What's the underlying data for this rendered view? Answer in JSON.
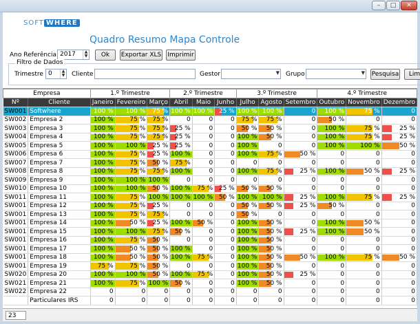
{
  "header": {
    "logo_left": "SOFT",
    "logo_right": "WHERE",
    "title": "Quadro Resumo Mapa Controle"
  },
  "toolbar": {
    "year_label": "Ano Referência",
    "year_value": "2017",
    "ok_label": "Ok",
    "export_label": "Exportar XLS",
    "print_label": "Imprimir"
  },
  "filters": {
    "legend": "Filtro de Dados",
    "quarter_label": "Trimestre",
    "quarter_value": "0",
    "client_label": "Cliente",
    "client_value": "",
    "manager_label": "Gestor",
    "manager_value": "",
    "group_label": "Grupo",
    "group_value": "",
    "search_label": "Pesquisa",
    "clear_label": "Lim"
  },
  "colors": {
    "green": "#9fdc00",
    "yellow": "#f2c400",
    "orange": "#f08a24",
    "red": "#f0504a",
    "selected": "#1aa5cf"
  },
  "table": {
    "group_headers": [
      "Empresa",
      "1.º Trimestre",
      "2.º Trimestre",
      "3.º Trimestre",
      "4.º Trimestre"
    ],
    "columns": [
      "Nº",
      "Cliente",
      "Janeiro",
      "Fevereiro",
      "Março",
      "Abril",
      "Maio",
      "Junho",
      "Julho",
      "Agosto",
      "Setembro",
      "Outubro",
      "Novembro",
      "Dezembro"
    ],
    "rows": [
      {
        "code": "SW001",
        "name": "Softwhere",
        "selected": true,
        "values": [
          "100 %",
          "100 %",
          "75 %",
          "100 %",
          "100 %",
          "25 %",
          "100 %",
          "100 %",
          "0",
          "100 %",
          "75 %",
          "0"
        ]
      },
      {
        "code": "SW002",
        "name": "Empresa 2",
        "values": [
          "100 %",
          "75 %",
          "75 %",
          "0",
          "0",
          "0",
          "75 %",
          "75 %",
          "0",
          "50 %",
          "0",
          "0"
        ]
      },
      {
        "code": "SW003",
        "name": "Empresa 3",
        "values": [
          "100 %",
          "75 %",
          "75 %",
          "25 %",
          "0",
          "0",
          "50 %",
          "50 %",
          "0",
          "100 %",
          "75 %",
          "25 %"
        ]
      },
      {
        "code": "SW004",
        "name": "Empresa 4",
        "values": [
          "100 %",
          "75 %",
          "75 %",
          "25 %",
          "0",
          "0",
          "100 %",
          "50 %",
          "0",
          "100 %",
          "75 %",
          "25 %"
        ]
      },
      {
        "code": "SW005",
        "name": "Empresa 5",
        "values": [
          "100 %",
          "100 %",
          "25 %",
          "25 %",
          "0",
          "0",
          "100 %",
          "0",
          "0",
          "100 %",
          "100 %",
          "50 %"
        ]
      },
      {
        "code": "SW006",
        "name": "Empresa 6",
        "values": [
          "100 %",
          "75 %",
          "25 %",
          "100 %",
          "0",
          "0",
          "100 %",
          "75 %",
          "50 %",
          "0",
          "0",
          "0"
        ]
      },
      {
        "code": "SW007",
        "name": "Empresa 7",
        "values": [
          "100 %",
          "75 %",
          "50 %",
          "75 %",
          "0",
          "0",
          "0",
          "0",
          "0",
          "0",
          "0",
          "0"
        ]
      },
      {
        "code": "SW008",
        "name": "Empresa 8",
        "values": [
          "100 %",
          "75 %",
          "75 %",
          "100 %",
          "0",
          "0",
          "100 %",
          "75 %",
          "25 %",
          "100 %",
          "50 %",
          "25 %"
        ]
      },
      {
        "code": "SW009",
        "name": "Empresa 9",
        "values": [
          "100 %",
          "100 %",
          "100 %",
          "0",
          "0",
          "0",
          "0",
          "0",
          "0",
          "0",
          "0",
          "0"
        ]
      },
      {
        "code": "SW010",
        "name": "Empresa 10",
        "values": [
          "100 %",
          "100 %",
          "50 %",
          "100 %",
          "75 %",
          "25 %",
          "50 %",
          "50 %",
          "0",
          "0",
          "0",
          "0"
        ]
      },
      {
        "code": "SW011",
        "name": "Empresa 11",
        "values": [
          "100 %",
          "75 %",
          "100 %",
          "100 %",
          "100 %",
          "50 %",
          "100 %",
          "100 %",
          "25 %",
          "100 %",
          "75 %",
          "25 %"
        ]
      },
      {
        "code": "SW001",
        "name": "Empresa 12",
        "values": [
          "100 %",
          "75 %",
          "25 %",
          "0",
          "0",
          "0",
          "50 %",
          "50 %",
          "25 %",
          "50 %",
          "0",
          "0"
        ]
      },
      {
        "code": "SW001",
        "name": "Empresa 13",
        "values": [
          "100 %",
          "75 %",
          "75 %",
          "0",
          "0",
          "0",
          "50 %",
          "0",
          "0",
          "0",
          "0",
          "0"
        ]
      },
      {
        "code": "SW001",
        "name": "Empresa 14",
        "values": [
          "100 %",
          "50 %",
          "25 %",
          "100 %",
          "50 %",
          "0",
          "100 %",
          "50 %",
          "0",
          "100 %",
          "50 %",
          "0"
        ]
      },
      {
        "code": "SW001",
        "name": "Empresa 15",
        "values": [
          "100 %",
          "100 %",
          "75 %",
          "50 %",
          "0",
          "0",
          "100 %",
          "50 %",
          "25 %",
          "100 %",
          "50 %",
          "0"
        ]
      },
      {
        "code": "SW001",
        "name": "Empresa 16",
        "values": [
          "100 %",
          "75 %",
          "50 %",
          "0",
          "0",
          "0",
          "100 %",
          "50 %",
          "0",
          "0",
          "0",
          "0"
        ]
      },
      {
        "code": "SW001",
        "name": "Empresa 17",
        "values": [
          "100 %",
          "50 %",
          "50 %",
          "100 %",
          "0",
          "0",
          "100 %",
          "50 %",
          "0",
          "0",
          "0",
          "0"
        ]
      },
      {
        "code": "SW001",
        "name": "Empresa 18",
        "values": [
          "100 %",
          "50 %",
          "50 %",
          "100 %",
          "75 %",
          "0",
          "100 %",
          "50 %",
          "50 %",
          "100 %",
          "75 %",
          "50 %"
        ]
      },
      {
        "code": "SW001",
        "name": "Empresa 19",
        "values": [
          "75 %",
          "75 %",
          "50 %",
          "0",
          "0",
          "0",
          "100 %",
          "50 %",
          "0",
          "0",
          "0",
          "0"
        ]
      },
      {
        "code": "SW020",
        "name": "Empresa 20",
        "values": [
          "100 %",
          "100 %",
          "50 %",
          "100 %",
          "75 %",
          "0",
          "100 %",
          "50 %",
          "25 %",
          "0",
          "0",
          "0"
        ]
      },
      {
        "code": "SW021",
        "name": "Empresa 21",
        "values": [
          "100 %",
          "75 %",
          "100 %",
          "50 %",
          "0",
          "0",
          "100 %",
          "50 %",
          "0",
          "0",
          "0",
          "0"
        ]
      },
      {
        "code": "SW022",
        "name": "Empresa 22",
        "values": [
          "0",
          "0",
          "0",
          "0",
          "0",
          "0",
          "0",
          "0",
          "0",
          "0",
          "0",
          "0"
        ]
      },
      {
        "code": "",
        "name": "Particulares IRS",
        "values": [
          "0",
          "0",
          "0",
          "0",
          "0",
          "0",
          "0",
          "0",
          "0",
          "0",
          "0",
          "0"
        ]
      }
    ]
  },
  "status": {
    "count": "23"
  }
}
